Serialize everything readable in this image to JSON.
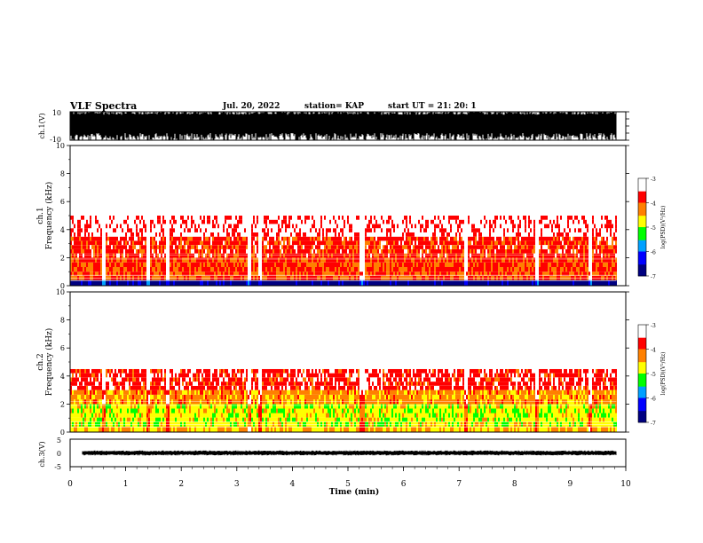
{
  "header": {
    "title": "VLF Spectra",
    "date": "Jul. 20, 2022",
    "station": "station= KAP",
    "start_time": "start UT = 21: 20: 1"
  },
  "colorbar": {
    "label": "log(PSD)(V²/Hz)",
    "ticks": [
      "-3",
      "-4",
      "-5",
      "-6",
      "-7"
    ],
    "range": [
      -7,
      -3
    ],
    "colors": [
      "#000080",
      "#0000ff",
      "#00a0ff",
      "#00ff00",
      "#ffff00",
      "#ff8000",
      "#ff0000",
      "#ffffff"
    ]
  },
  "chart_data": [
    {
      "type": "line",
      "name": "waveform-ch1",
      "ylabel": "ch.1(V)",
      "ylim": [
        -10,
        10
      ],
      "yticks": [
        "10",
        "-10"
      ],
      "xlim": [
        0,
        10
      ],
      "x_data_end": 9.83,
      "description_values": {
        "typical_high": 8,
        "typical_low": -5
      }
    },
    {
      "type": "heatmap",
      "name": "spectrogram-ch1",
      "ylabel_line1": "ch.1",
      "ylabel_line2": "Frequency (kHz)",
      "ylim": [
        0,
        10
      ],
      "yticks": [
        "0",
        "2",
        "4",
        "6",
        "8",
        "10"
      ],
      "xlim": [
        0,
        10
      ],
      "x_data_end": 9.83,
      "bands": [
        {
          "f_low": 0.0,
          "f_high": 0.4,
          "level": -6.8
        },
        {
          "f_low": 0.4,
          "f_high": 1.0,
          "level": -4.0
        },
        {
          "f_low": 1.0,
          "f_high": 2.0,
          "level": -3.9
        },
        {
          "f_low": 2.0,
          "f_high": 3.5,
          "level": -3.8
        },
        {
          "f_low": 3.5,
          "f_high": 5.0,
          "level": -3.4
        },
        {
          "f_low": 5.0,
          "f_high": 10.0,
          "level": -3.1
        }
      ],
      "quiet_times_min": [
        0.6,
        1.4,
        1.75,
        3.2,
        3.4,
        5.22,
        5.25,
        7.1,
        8.4,
        9.35
      ]
    },
    {
      "type": "heatmap",
      "name": "spectrogram-ch2",
      "ylabel_line1": "ch.2",
      "ylabel_line2": "Frequency (kHz)",
      "ylim": [
        0,
        10
      ],
      "yticks": [
        "0",
        "2",
        "4",
        "6",
        "8",
        "10"
      ],
      "xlim": [
        0,
        10
      ],
      "x_data_end": 9.83,
      "bands": [
        {
          "f_low": 0.0,
          "f_high": 0.4,
          "level": -4.5
        },
        {
          "f_low": 0.4,
          "f_high": 2.0,
          "level": -4.8
        },
        {
          "f_low": 2.0,
          "f_high": 3.0,
          "level": -4.3
        },
        {
          "f_low": 3.0,
          "f_high": 4.5,
          "level": -3.7
        },
        {
          "f_low": 4.5,
          "f_high": 10.0,
          "level": -3.1
        }
      ],
      "quiet_times_min": [
        0.6,
        1.4,
        1.75,
        3.2,
        3.4,
        5.22,
        5.25,
        7.1,
        8.4,
        9.35
      ]
    },
    {
      "type": "line",
      "name": "waveform-ch3",
      "ylabel": "ch.3(V)",
      "ylim": [
        -5,
        5
      ],
      "yticks": [
        "5",
        "0",
        "-5"
      ],
      "xlim": [
        0,
        10
      ],
      "x_data_end": 9.83,
      "xlabel": "Time (min)",
      "xticks": [
        "0",
        "1",
        "2",
        "3",
        "4",
        "5",
        "6",
        "7",
        "8",
        "9",
        "10"
      ],
      "description_values": {
        "typical_high": 0.5,
        "typical_low": -0.5
      }
    }
  ]
}
